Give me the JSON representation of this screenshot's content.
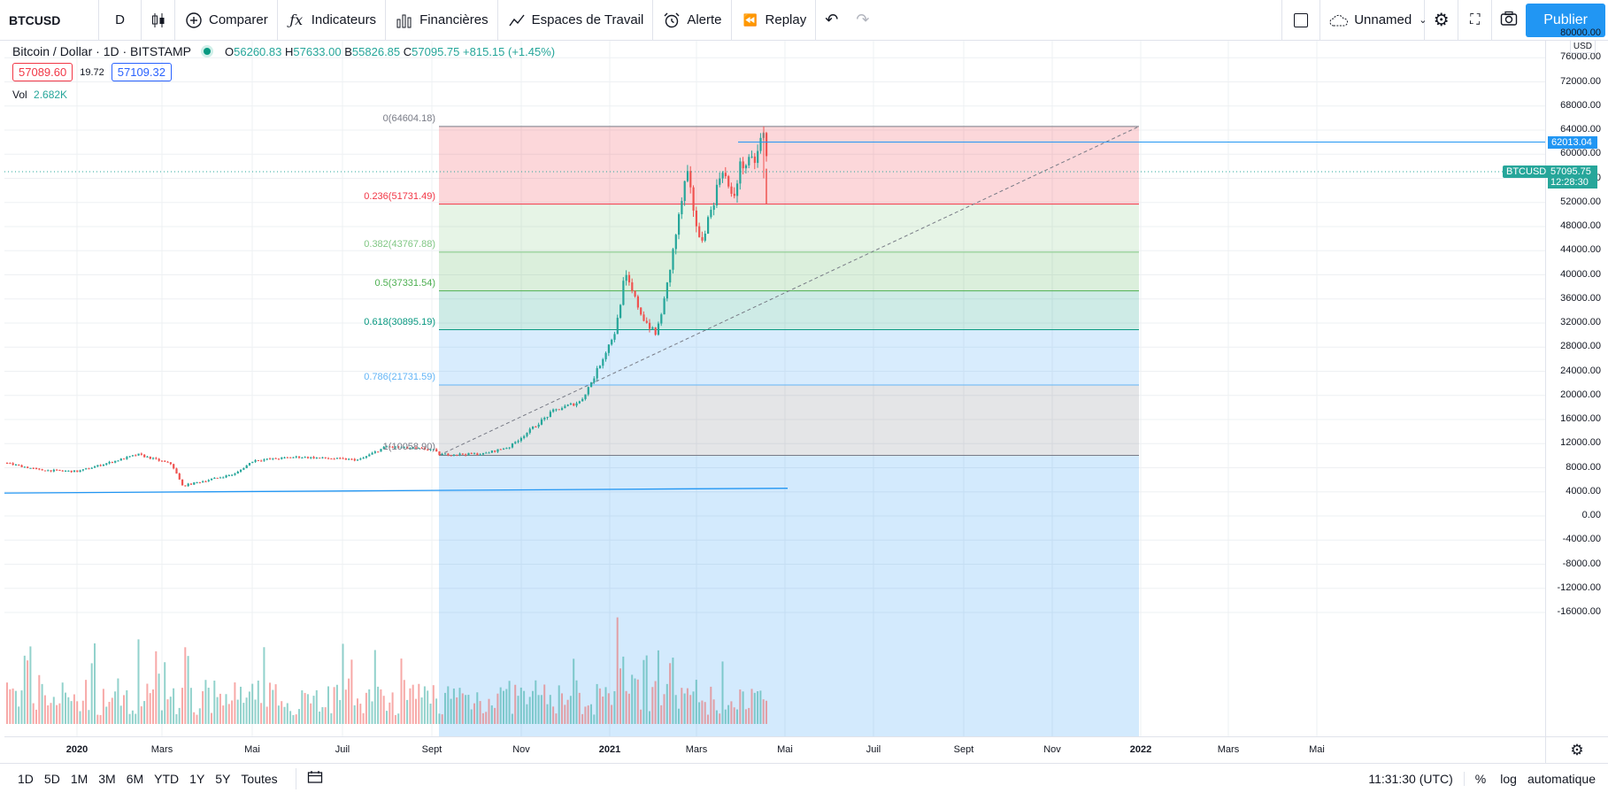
{
  "toolbar": {
    "symbol": "BTCUSD",
    "interval": "D",
    "compare": "Comparer",
    "indicators": "Indicateurs",
    "financials": "Financières",
    "workspaces": "Espaces de Travail",
    "alert": "Alerte",
    "replay": "Replay",
    "layout_name": "Unnamed",
    "publish": "Publier"
  },
  "legend": {
    "title": "Bitcoin / Dollar · 1D · BITSTAMP",
    "o_key": "O",
    "o_val": "56260.83",
    "h_key": "H",
    "h_val": "57633.00",
    "b_key": "B",
    "b_val": "55826.85",
    "c_key": "C",
    "c_val": "57095.75",
    "change": "+815.15 (+1.45%)",
    "bid": "57089.60",
    "spread": "19.72",
    "ask": "57109.32",
    "vol_label": "Vol",
    "vol_value": "2.682K"
  },
  "price_axis": {
    "currency": "USD",
    "labels": [
      "80000.00",
      "76000.00",
      "72000.00",
      "68000.00",
      "64000.00",
      "60000.00",
      "56000.00",
      "52000.00",
      "48000.00",
      "44000.00",
      "40000.00",
      "36000.00",
      "32000.00",
      "28000.00",
      "24000.00",
      "20000.00",
      "16000.00",
      "12000.00",
      "8000.00",
      "4000.00",
      "0.00",
      "-4000.00",
      "-8000.00",
      "-12000.00",
      "-16000.00"
    ],
    "last_price": "57095.75",
    "countdown": "12:28:30",
    "line_price": "62013.04",
    "symbol_tag": "BTCUSD"
  },
  "time_axis": {
    "labels": [
      "2020",
      "Mars",
      "Mai",
      "Juil",
      "Sept",
      "Nov",
      "2021",
      "Mars",
      "Mai",
      "Juil",
      "Sept",
      "Nov",
      "2022",
      "Mars",
      "Mai"
    ]
  },
  "fib_levels": [
    {
      "label": "0(64604.18)",
      "color": "#787b86"
    },
    {
      "label": "0.236(51731.49)",
      "color": "#f23645"
    },
    {
      "label": "0.382(43767.88)",
      "color": "#81c784"
    },
    {
      "label": "0.5(37331.54)",
      "color": "#4caf50"
    },
    {
      "label": "0.618(30895.19)",
      "color": "#089981"
    },
    {
      "label": "0.786(21731.59)",
      "color": "#64b5f6"
    },
    {
      "label": "1(10058.90)",
      "color": "#787b86"
    }
  ],
  "bottombar": {
    "ranges": [
      "1D",
      "5D",
      "1M",
      "3M",
      "6M",
      "YTD",
      "1Y",
      "5Y",
      "Toutes"
    ],
    "clock": "11:31:30 (UTC)",
    "percent": "%",
    "log": "log",
    "auto": "automatique"
  },
  "colors": {
    "up": "#26a69a",
    "down": "#ef5350",
    "accent": "#2196f3"
  }
}
